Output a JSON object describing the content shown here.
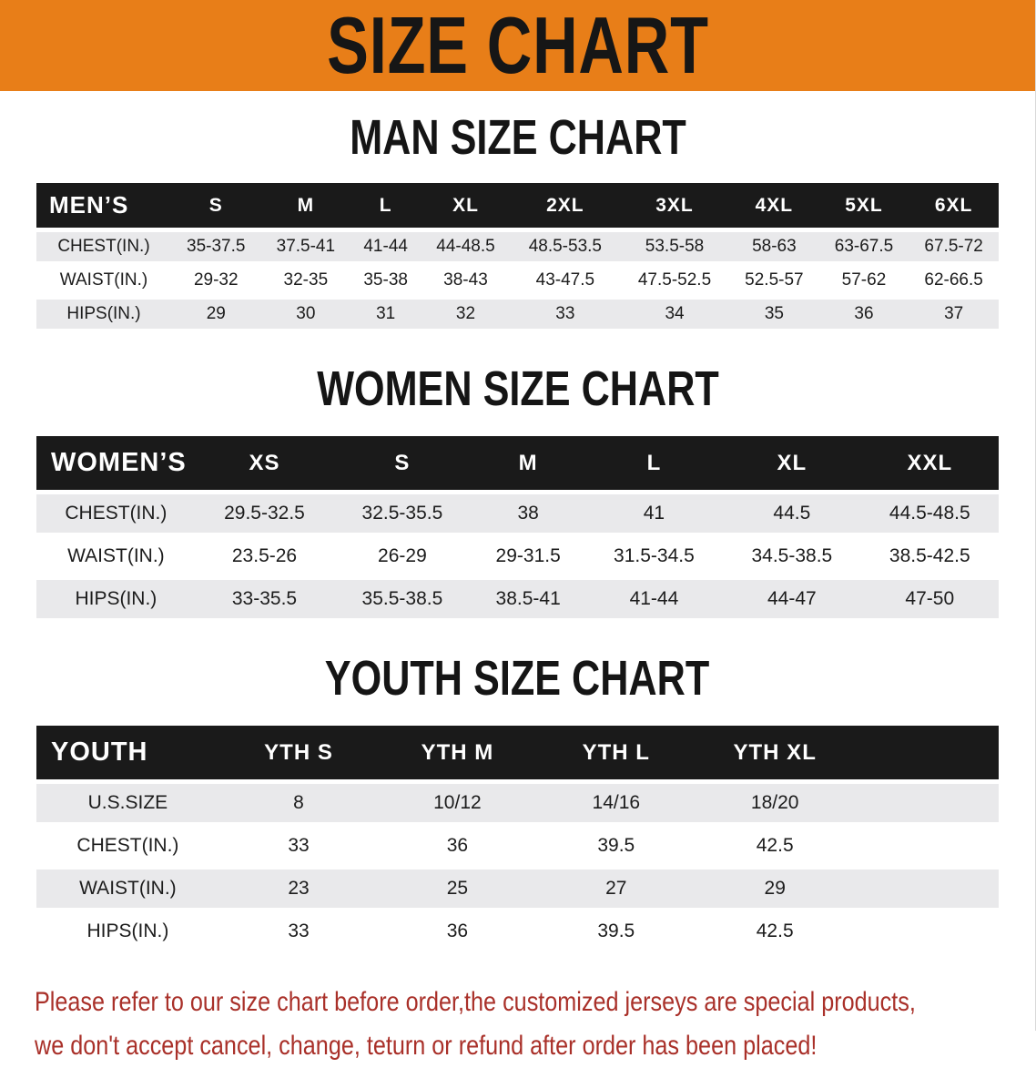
{
  "banner": {
    "title": "SIZE CHART"
  },
  "colors": {
    "banner_bg": "#e87e18",
    "header_band": "#1a1a1a",
    "row_stripe": "#e9e9eb",
    "disclaimer_text": "#a93029"
  },
  "sections": [
    {
      "id": "mens",
      "heading": "MAN SIZE CHART",
      "label": "MEN’S",
      "columns": [
        "S",
        "M",
        "L",
        "XL",
        "2XL",
        "3XL",
        "4XL",
        "5XL",
        "6XL"
      ],
      "rows": [
        {
          "label": "CHEST(IN.)",
          "values": [
            "35-37.5",
            "37.5-41",
            "41-44",
            "44-48.5",
            "48.5-53.5",
            "53.5-58",
            "58-63",
            "63-67.5",
            "67.5-72"
          ]
        },
        {
          "label": "WAIST(IN.)",
          "values": [
            "29-32",
            "32-35",
            "35-38",
            "38-43",
            "43-47.5",
            "47.5-52.5",
            "52.5-57",
            "57-62",
            "62-66.5"
          ]
        },
        {
          "label": "HIPS(IN.)",
          "values": [
            "29",
            "30",
            "31",
            "32",
            "33",
            "34",
            "35",
            "36",
            "37"
          ]
        }
      ]
    },
    {
      "id": "womens",
      "heading": "WOMEN SIZE CHART",
      "label": "WOMEN’S",
      "columns": [
        "XS",
        "S",
        "M",
        "L",
        "XL",
        "XXL"
      ],
      "rows": [
        {
          "label": "CHEST(IN.)",
          "values": [
            "29.5-32.5",
            "32.5-35.5",
            "38",
            "41",
            "44.5",
            "44.5-48.5"
          ]
        },
        {
          "label": "WAIST(IN.)",
          "values": [
            "23.5-26",
            "26-29",
            "29-31.5",
            "31.5-34.5",
            "34.5-38.5",
            "38.5-42.5"
          ]
        },
        {
          "label": "HIPS(IN.)",
          "values": [
            "33-35.5",
            "35.5-38.5",
            "38.5-41",
            "41-44",
            "44-47",
            "47-50"
          ]
        }
      ]
    },
    {
      "id": "youth",
      "heading": "YOUTH SIZE CHART",
      "label": "YOUTH",
      "columns": [
        "YTH S",
        "YTH M",
        "YTH L",
        "YTH XL"
      ],
      "rows": [
        {
          "label": "U.S.SIZE",
          "values": [
            "8",
            "10/12",
            "14/16",
            "18/20"
          ]
        },
        {
          "label": "CHEST(IN.)",
          "values": [
            "33",
            "36",
            "39.5",
            "42.5"
          ]
        },
        {
          "label": "WAIST(IN.)",
          "values": [
            "23",
            "25",
            "27",
            "29"
          ]
        },
        {
          "label": "HIPS(IN.)",
          "values": [
            "33",
            "36",
            "39.5",
            "42.5"
          ]
        }
      ]
    }
  ],
  "disclaimer": {
    "line1": "Please refer to our size chart before order,the customized jerseys are special products,",
    "line2": "we don't accept cancel, change, teturn or refund after order has been placed!"
  }
}
